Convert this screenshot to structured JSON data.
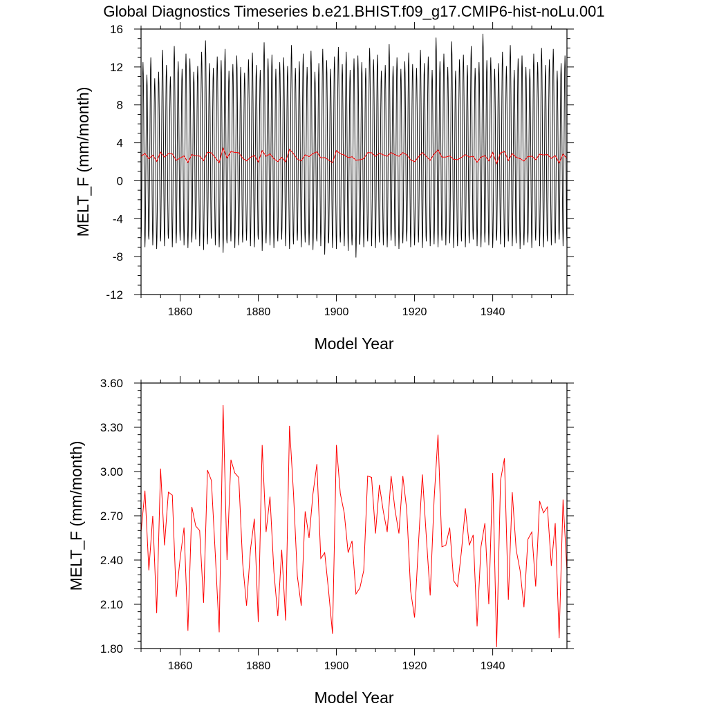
{
  "page_title": "Global Diagnostics Timeseries b.e21.BHIST.f09_g17.CMIP6-hist-noLu.001",
  "chart_data": [
    {
      "type": "line",
      "xlabel": "Model Year",
      "ylabel": "MELT_F (mm/month)",
      "xlim": [
        1850,
        1959
      ],
      "ylim": [
        -12,
        16
      ],
      "xticks": [
        1860,
        1880,
        1900,
        1920,
        1940
      ],
      "yticks": [
        -12,
        -8,
        -4,
        0,
        4,
        8,
        12,
        16
      ],
      "ytick_labels": [
        "-12",
        "-8",
        "-4",
        "0",
        "4",
        "8",
        "12",
        "16"
      ],
      "reference_line": 0,
      "series": [
        {
          "color": "#000000",
          "style": "monthly",
          "x_start": 1850,
          "peak_values": [
            12.5,
            11.2,
            13.0,
            10.8,
            11.5,
            13.8,
            12.2,
            11.0,
            14.2,
            12.6,
            11.8,
            13.4,
            12.9,
            11.5,
            12.1,
            13.6,
            14.8,
            12.4,
            11.9,
            13.1,
            12.7,
            13.9,
            11.6,
            12.3,
            13.2,
            12.0,
            11.4,
            12.8,
            13.5,
            12.2,
            11.7,
            14.6,
            12.9,
            13.3,
            11.8,
            12.5,
            13.0,
            12.1,
            14.3,
            11.9,
            12.6,
            13.4,
            12.0,
            13.7,
            11.5,
            12.4,
            13.9,
            12.7,
            11.8,
            13.1,
            14.1,
            12.3,
            13.6,
            11.7,
            12.9,
            13.2,
            12.5,
            11.9,
            14.0,
            12.8,
            13.3,
            11.6,
            12.2,
            14.4,
            12.1,
            13.0,
            11.8,
            12.6,
            13.5,
            12.3,
            11.9,
            13.8,
            12.4,
            13.1,
            11.7,
            15.1,
            12.6,
            13.4,
            12.0,
            14.7,
            11.6,
            12.8,
            13.3,
            12.2,
            14.2,
            11.9,
            12.5,
            15.5,
            12.7,
            13.0,
            11.8,
            12.4,
            13.6,
            12.1,
            14.3,
            11.7,
            12.9,
            13.2,
            12.0,
            11.8,
            13.4,
            12.5,
            14.0,
            12.2,
            12.8,
            13.9,
            11.6,
            12.4,
            13.2,
            12.3
          ],
          "trough_values": [
            -6.5,
            -7.0,
            -6.2,
            -6.8,
            -7.2,
            -6.4,
            -6.9,
            -6.1,
            -7.0,
            -6.6,
            -6.3,
            -6.8,
            -7.1,
            -6.5,
            -6.2,
            -6.9,
            -7.3,
            -6.7,
            -6.1,
            -6.8,
            -7.0,
            -7.6,
            -6.6,
            -6.4,
            -7.1,
            -6.8,
            -6.5,
            -6.3,
            -6.9,
            -7.0,
            -6.2,
            -7.4,
            -6.6,
            -6.8,
            -7.1,
            -6.4,
            -6.2,
            -6.9,
            -7.2,
            -6.7,
            -6.3,
            -7.0,
            -6.5,
            -6.8,
            -7.3,
            -6.4,
            -6.9,
            -7.8,
            -6.6,
            -7.1,
            -7.2,
            -6.5,
            -6.9,
            -7.4,
            -6.8,
            -8.1,
            -6.7,
            -7.0,
            -6.4,
            -6.9,
            -7.1,
            -6.5,
            -6.8,
            -7.0,
            -6.3,
            -6.9,
            -7.2,
            -6.6,
            -6.4,
            -7.0,
            -6.8,
            -6.5,
            -7.1,
            -6.4,
            -6.9,
            -6.7,
            -7.0,
            -6.3,
            -6.8,
            -6.6,
            -7.1,
            -6.9,
            -6.4,
            -7.0,
            -6.6,
            -6.2,
            -6.9,
            -7.0,
            -6.5,
            -6.8,
            -7.1,
            -6.3,
            -6.7,
            -7.0,
            -6.4,
            -6.9,
            -6.6,
            -7.2,
            -6.8,
            -6.5,
            -7.1,
            -6.3,
            -6.9,
            -7.0,
            -6.4,
            -6.8,
            -6.6,
            -6.2,
            -6.9,
            -6.5
          ]
        },
        {
          "color": "#ff0000",
          "style": "annual"
        }
      ]
    },
    {
      "type": "line",
      "xlabel": "Model Year",
      "ylabel": "MELT_F (mm/month)",
      "xlim": [
        1850,
        1959
      ],
      "ylim": [
        1.8,
        3.6
      ],
      "xticks": [
        1860,
        1880,
        1900,
        1920,
        1940
      ],
      "yticks": [
        1.8,
        2.1,
        2.4,
        2.7,
        3.0,
        3.3,
        3.6
      ],
      "ytick_labels": [
        "1.80",
        "2.10",
        "2.40",
        "2.70",
        "3.00",
        "3.30",
        "3.60"
      ],
      "series": [
        {
          "color": "#ff0000",
          "x_start": 1850,
          "values": [
            2.59,
            2.87,
            2.33,
            2.7,
            2.04,
            3.02,
            2.5,
            2.86,
            2.84,
            2.15,
            2.41,
            2.62,
            1.92,
            2.76,
            2.63,
            2.6,
            2.11,
            3.01,
            2.94,
            2.44,
            1.91,
            3.45,
            2.4,
            3.08,
            2.99,
            2.96,
            2.38,
            2.09,
            2.47,
            2.68,
            1.98,
            3.18,
            2.59,
            2.83,
            2.32,
            2.02,
            2.47,
            1.99,
            3.31,
            2.86,
            2.29,
            2.09,
            2.73,
            2.55,
            2.85,
            3.05,
            2.41,
            2.45,
            2.19,
            1.9,
            3.18,
            2.85,
            2.72,
            2.45,
            2.53,
            2.17,
            2.21,
            2.33,
            2.97,
            2.96,
            2.58,
            2.91,
            2.73,
            2.59,
            2.97,
            2.74,
            2.58,
            2.97,
            2.74,
            2.19,
            2.01,
            2.51,
            2.98,
            2.56,
            2.16,
            2.81,
            3.25,
            2.49,
            2.5,
            2.62,
            2.26,
            2.22,
            2.46,
            2.75,
            2.5,
            2.57,
            1.95,
            2.49,
            2.65,
            2.1,
            2.99,
            1.81,
            2.94,
            3.09,
            2.13,
            2.86,
            2.47,
            2.33,
            2.08,
            2.54,
            2.59,
            2.22,
            2.8,
            2.72,
            2.76,
            2.36,
            2.65,
            1.87,
            2.81,
            2.33
          ]
        }
      ]
    }
  ]
}
